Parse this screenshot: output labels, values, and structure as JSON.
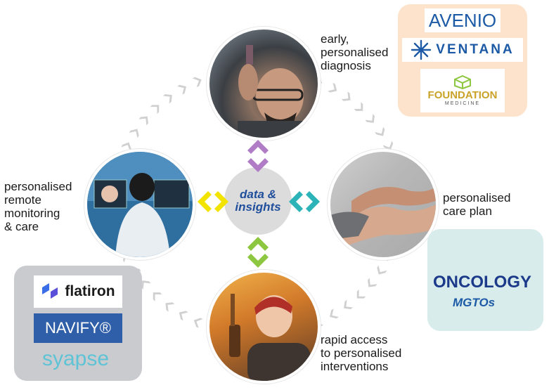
{
  "center": {
    "line1": "data &",
    "line2": "insights"
  },
  "nodes": {
    "top": "early,\npersonalised\ndiagnosis",
    "right": "personalised\ncare plan",
    "bottom": "rapid access\nto personalised\ninterventions",
    "left": "personalised\nremote\nmonitoring\n& care"
  },
  "partners": {
    "top_right": {
      "avenio": "AVENIO",
      "ventana": "VENTANA",
      "foundation": "FOUNDATION",
      "foundation_sub": "MEDICINE"
    },
    "right": {
      "oncology": "ONCOLOGY",
      "mgtos": "MGTOs"
    },
    "bottom_left": {
      "flatiron": "flatiron",
      "navify": "NAVIFY®",
      "syapse": "syapse"
    }
  },
  "colors": {
    "arrow_top": "#b07cc6",
    "arrow_left": "#f2e300",
    "arrow_right": "#2bb3b8",
    "arrow_bottom": "#8dc63f",
    "cycle": "#d0d0d0",
    "panel_orange": "#fde3cc",
    "panel_teal": "#d8ecec",
    "panel_gray": "#c9cbcf"
  }
}
